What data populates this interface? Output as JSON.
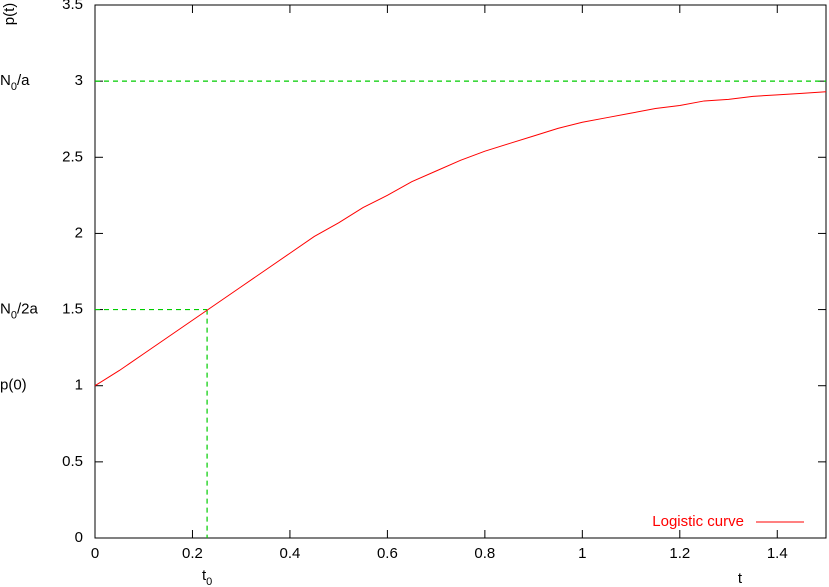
{
  "chart_data": {
    "type": "line",
    "x_label": "t",
    "y_label": "p(t)",
    "x": [
      0,
      0.05,
      0.1,
      0.15,
      0.2,
      0.25,
      0.3,
      0.35,
      0.4,
      0.45,
      0.5,
      0.55,
      0.6,
      0.65,
      0.7,
      0.75,
      0.8,
      0.85,
      0.9,
      0.95,
      1,
      1.05,
      1.1,
      1.15,
      1.2,
      1.25,
      1.3,
      1.35,
      1.4,
      1.45,
      1.5
    ],
    "series": [
      {
        "name": "Logistic curve",
        "color": "#ff0000",
        "values": [
          1,
          1.1,
          1.21,
          1.32,
          1.43,
          1.54,
          1.65,
          1.76,
          1.87,
          1.98,
          2.07,
          2.17,
          2.25,
          2.34,
          2.41,
          2.48,
          2.54,
          2.59,
          2.64,
          2.69,
          2.73,
          2.76,
          2.79,
          2.82,
          2.84,
          2.87,
          2.88,
          2.9,
          2.91,
          2.92,
          2.93
        ]
      }
    ],
    "xlim": [
      0,
      1.5
    ],
    "xticks": [
      0,
      0.2,
      0.4,
      0.6,
      0.8,
      1,
      1.2,
      1.4
    ],
    "ylim": [
      0,
      3.5
    ],
    "yticks": [
      0,
      0.5,
      1,
      1.5,
      2,
      2.5,
      3,
      3.5
    ],
    "y_annotations": [
      {
        "value": 3,
        "text": [
          "N",
          "0",
          "/a"
        ],
        "guide": "full"
      },
      {
        "value": 1.5,
        "text": [
          "N",
          "0",
          "/2a"
        ],
        "guide": "corner"
      },
      {
        "value": 1,
        "text": [
          "p(0)"
        ]
      }
    ],
    "x_annotations": [
      {
        "value": 0.23,
        "text": [
          "t",
          "0"
        ]
      }
    ],
    "guide_color": "#00cc00",
    "legend": "bottom-right"
  }
}
